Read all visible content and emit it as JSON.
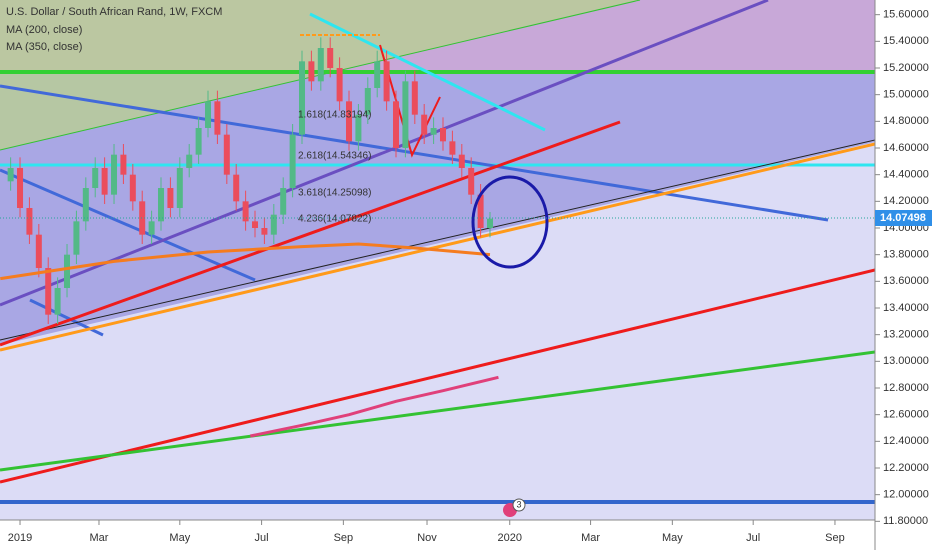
{
  "chart_data": {
    "type": "candlestick",
    "title": "U.S. Dollar / South African Rand, 1W, FXCM",
    "x": [
      -1,
      0,
      1,
      2,
      3,
      4,
      5,
      6,
      7,
      8,
      9,
      10,
      11,
      12,
      13,
      14,
      15,
      16,
      17,
      18,
      19,
      20,
      21,
      22,
      23,
      24,
      25,
      26,
      27,
      28,
      29,
      30,
      31,
      32,
      33,
      34,
      35,
      36,
      37,
      38,
      39,
      40,
      41,
      42,
      43,
      44,
      45,
      46,
      47,
      48,
      49,
      50
    ],
    "open": [
      14.35,
      14.45,
      14.15,
      13.95,
      13.7,
      13.35,
      13.55,
      13.8,
      14.05,
      14.3,
      14.45,
      14.25,
      14.55,
      14.4,
      14.2,
      13.95,
      14.05,
      14.3,
      14.15,
      14.45,
      14.55,
      14.75,
      14.95,
      14.7,
      14.4,
      14.2,
      14.05,
      14.0,
      13.95,
      14.1,
      14.3,
      14.7,
      15.25,
      15.1,
      15.35,
      15.2,
      14.95,
      14.65,
      14.85,
      15.05,
      15.25,
      14.95,
      14.6,
      15.1,
      14.85,
      14.7,
      14.75,
      14.65,
      14.55,
      14.45,
      14.25,
      14.0
    ],
    "high": [
      14.53,
      14.53,
      14.23,
      14.03,
      13.78,
      13.63,
      13.88,
      14.13,
      14.38,
      14.53,
      14.53,
      14.63,
      14.63,
      14.48,
      14.28,
      14.13,
      14.38,
      14.38,
      14.53,
      14.63,
      14.83,
      15.03,
      15.03,
      14.78,
      14.48,
      14.28,
      14.13,
      14.08,
      14.18,
      14.38,
      14.78,
      15.33,
      15.33,
      15.43,
      15.43,
      15.28,
      15.03,
      14.93,
      15.13,
      15.33,
      15.33,
      15.03,
      15.18,
      15.18,
      14.93,
      14.83,
      14.83,
      14.73,
      14.63,
      14.53,
      14.33,
      14.12
    ],
    "low": [
      14.28,
      14.08,
      13.88,
      13.63,
      13.28,
      13.28,
      13.48,
      13.73,
      13.98,
      14.23,
      14.18,
      14.18,
      14.33,
      14.13,
      13.88,
      13.88,
      13.98,
      14.08,
      14.08,
      14.38,
      14.48,
      14.68,
      14.63,
      14.33,
      14.13,
      13.98,
      13.93,
      13.88,
      13.88,
      14.03,
      14.23,
      14.63,
      15.03,
      15.03,
      15.13,
      14.88,
      14.58,
      14.58,
      14.78,
      14.98,
      14.88,
      14.53,
      14.53,
      14.78,
      14.63,
      14.63,
      14.58,
      14.48,
      14.38,
      14.18,
      13.93,
      13.93
    ],
    "close": [
      14.45,
      14.15,
      13.95,
      13.7,
      13.35,
      13.55,
      13.8,
      14.05,
      14.3,
      14.45,
      14.25,
      14.55,
      14.4,
      14.2,
      13.95,
      14.05,
      14.3,
      14.15,
      14.45,
      14.55,
      14.75,
      14.95,
      14.7,
      14.4,
      14.2,
      14.05,
      14.0,
      13.95,
      14.1,
      14.3,
      14.7,
      15.25,
      15.1,
      15.35,
      15.2,
      14.95,
      14.65,
      14.85,
      15.05,
      15.25,
      14.95,
      14.6,
      15.1,
      14.85,
      14.7,
      14.75,
      14.65,
      14.55,
      14.45,
      14.25,
      14.0,
      14.07
    ],
    "up_color": "#53b987",
    "down_color": "#eb4d5c",
    "series": [
      {
        "name": "MA (200, close)",
        "color": "#f57c1f",
        "x": [
          -2.1,
          10,
          20,
          30,
          36,
          42,
          50
        ],
        "values": [
          13.62,
          13.75,
          13.82,
          13.86,
          13.88,
          13.85,
          13.8
        ]
      },
      {
        "name": "MA (350, close)",
        "color": "#e0407a",
        "x": [
          24.5,
          30,
          35,
          40,
          45,
          50.9
        ],
        "values": [
          12.44,
          12.52,
          12.6,
          12.7,
          12.78,
          12.88
        ]
      }
    ],
    "last_price": 14.07498,
    "annotations": [
      "1.618(14.83194)",
      "2.618(14.54346)",
      "3.618(14.25098)",
      "4.236(14.07822)"
    ],
    "event_marker": "3",
    "xlim": [
      -2.13,
      90.96
    ],
    "xticks": [
      {
        "value": 0,
        "label": "2019"
      },
      {
        "value": 8.4,
        "label": "Mar"
      },
      {
        "value": 17,
        "label": "May"
      },
      {
        "value": 25.7,
        "label": "Jul"
      },
      {
        "value": 34.4,
        "label": "Sep"
      },
      {
        "value": 43.3,
        "label": "Nov"
      },
      {
        "value": 52.1,
        "label": "2020"
      },
      {
        "value": 60.7,
        "label": "Mar"
      },
      {
        "value": 69.4,
        "label": "May"
      },
      {
        "value": 78,
        "label": "Jul"
      },
      {
        "value": 86.7,
        "label": "Sep"
      }
    ],
    "ylim": [
      11.81,
      15.71
    ],
    "yticks": [
      {
        "value": 15.6,
        "label": "15.60000"
      },
      {
        "value": 15.4,
        "label": "15.40000"
      },
      {
        "value": 15.2,
        "label": "15.20000"
      },
      {
        "value": 15.0,
        "label": "15.00000"
      },
      {
        "value": 14.8,
        "label": "14.80000"
      },
      {
        "value": 14.6,
        "label": "14.60000"
      },
      {
        "value": 14.4,
        "label": "14.40000"
      },
      {
        "value": 14.2,
        "label": "14.20000"
      },
      {
        "value": 14.0,
        "label": "14.00000"
      },
      {
        "value": 13.8,
        "label": "13.80000"
      },
      {
        "value": 13.6,
        "label": "13.60000"
      },
      {
        "value": 13.4,
        "label": "13.40000"
      },
      {
        "value": 13.2,
        "label": "13.20000"
      },
      {
        "value": 13.0,
        "label": "13.00000"
      },
      {
        "value": 12.8,
        "label": "12.80000"
      },
      {
        "value": 12.6,
        "label": "12.60000"
      },
      {
        "value": 12.4,
        "label": "12.40000"
      },
      {
        "value": 12.2,
        "label": "12.20000"
      },
      {
        "value": 12.0,
        "label": "12.00000"
      },
      {
        "value": 11.8,
        "label": "11.80000"
      }
    ]
  }
}
